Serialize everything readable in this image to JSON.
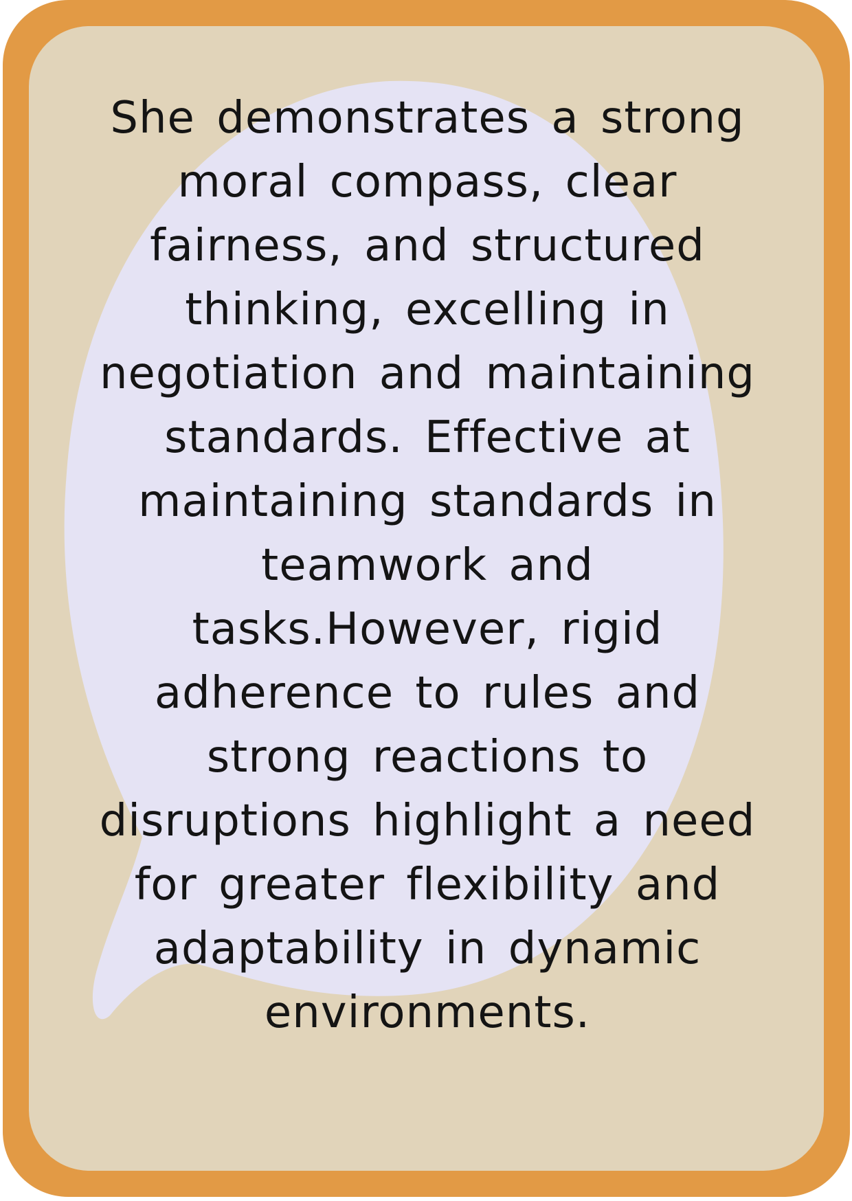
{
  "card": {
    "text": "She demonstrates a strong moral compass, clear fairness, and structured thinking, excelling in negotiation and maintaining standards. Effective at maintaining standards in teamwork and tasks.However, rigid adherence to rules and strong reactions to disruptions highlight a need for greater flexibility and adaptability in dynamic environments."
  },
  "colors": {
    "border": "#E29A45",
    "background": "#E1D4BA",
    "bubble": "#E5E3F4",
    "text": "#141414"
  }
}
